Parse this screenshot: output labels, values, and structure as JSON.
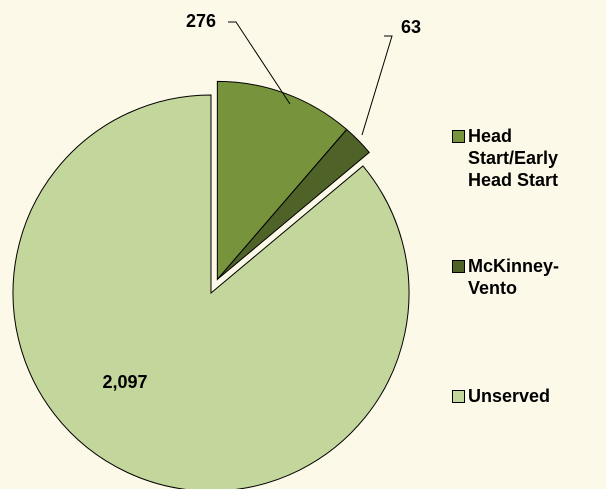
{
  "chart_data": {
    "type": "pie",
    "categories": [
      "Head Start/Early Head Start",
      "McKinney-Vento",
      "Unserved"
    ],
    "values": [
      276,
      63,
      2097
    ],
    "value_labels": [
      "276",
      "63",
      "2,097"
    ],
    "colors": [
      "#77933c",
      "#4f6228",
      "#c3d69b"
    ],
    "exploded": [
      true,
      true,
      false
    ],
    "legend": "right"
  }
}
